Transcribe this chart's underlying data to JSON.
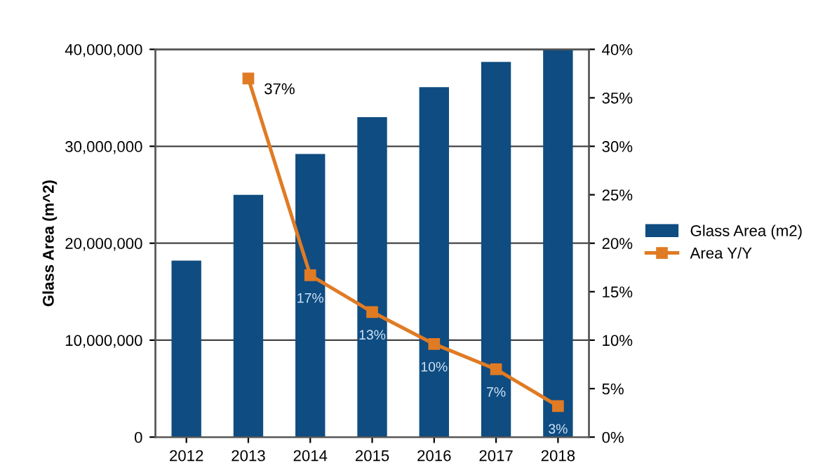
{
  "chart_data": {
    "type": "bar",
    "ylabel": "Glass Area (m^2)",
    "categories": [
      "2012",
      "2013",
      "2014",
      "2015",
      "2016",
      "2017",
      "2018"
    ],
    "series": [
      {
        "name": "Glass Area (m2)",
        "color": "#0f4c81",
        "values": [
          18200000,
          25000000,
          29200000,
          33000000,
          36100000,
          38700000,
          40000000
        ]
      },
      {
        "name": "Area Y/Y",
        "type": "line",
        "axis": "y2",
        "color": "#e07b24",
        "marker": "square",
        "values": [
          null,
          37,
          16.7,
          12.9,
          9.6,
          7.0,
          3.2
        ],
        "value_labels": [
          null,
          "37%",
          "17%",
          "13%",
          "10%",
          "7%",
          "3%"
        ]
      }
    ],
    "ylim": [
      0,
      40000000
    ],
    "yticks": [
      {
        "value": 0,
        "label": "0"
      },
      {
        "value": 10000000,
        "label": "10,000,000"
      },
      {
        "value": 20000000,
        "label": "20,000,000"
      },
      {
        "value": 30000000,
        "label": "30,000,000"
      },
      {
        "value": 40000000,
        "label": "40,000,000"
      }
    ],
    "y2lim": [
      0,
      40
    ],
    "y2ticks": [
      {
        "value": 0,
        "label": "0%"
      },
      {
        "value": 5,
        "label": "5%"
      },
      {
        "value": 10,
        "label": "10%"
      },
      {
        "value": 15,
        "label": "15%"
      },
      {
        "value": 20,
        "label": "20%"
      },
      {
        "value": 25,
        "label": "25%"
      },
      {
        "value": 30,
        "label": "30%"
      },
      {
        "value": 35,
        "label": "35%"
      },
      {
        "value": 40,
        "label": "40%"
      }
    ],
    "grid": "y",
    "legend": "right"
  }
}
